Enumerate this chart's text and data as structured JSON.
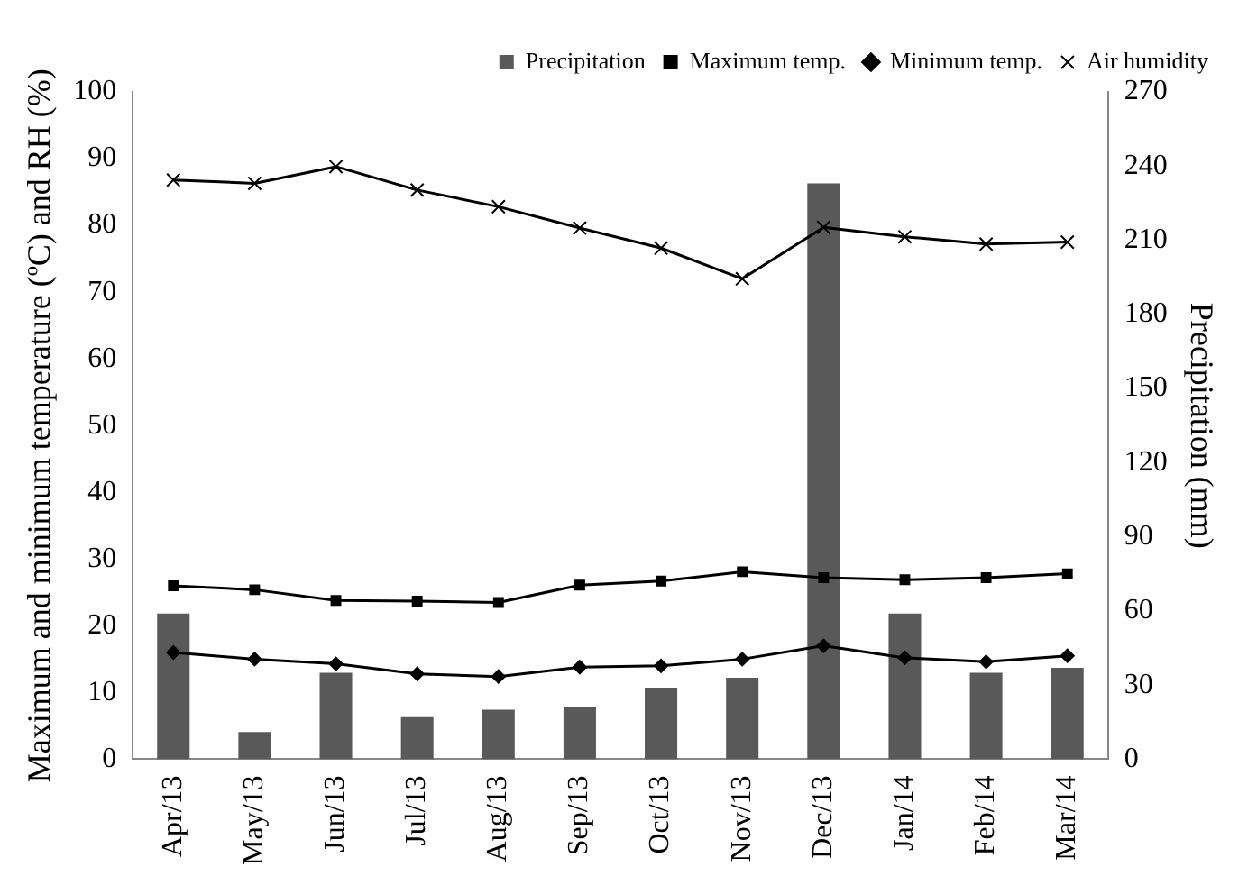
{
  "chart_data": {
    "type": "bar",
    "categories": [
      "Apr/13",
      "May/13",
      "Jun/13",
      "Jul/13",
      "Aug/13",
      "Sep/13",
      "Oct/13",
      "Nov/13",
      "Dec/13",
      "Jan/14",
      "Feb/14",
      "Mar/14"
    ],
    "ylabel": "Maximum and minimum temperature (ºC) and RH (%)",
    "y2label": "Precipitation (mm)",
    "ylim": [
      0,
      100
    ],
    "yticks": [
      0,
      10,
      20,
      30,
      40,
      50,
      60,
      70,
      80,
      90,
      100
    ],
    "y2lim": [
      0,
      270
    ],
    "y2ticks": [
      0,
      30,
      60,
      90,
      120,
      150,
      180,
      210,
      240,
      270
    ],
    "grid": false,
    "legend": "top",
    "series": [
      {
        "name": "Precipitation",
        "axis": "y2",
        "color": "#595959",
        "values": [
          59,
          11,
          35,
          17,
          20,
          21,
          29,
          33,
          233,
          59,
          35,
          37
        ]
      },
      {
        "name": "Maximum temp.",
        "type": "line",
        "marker": "square",
        "color": "#000000",
        "values": [
          26,
          25.4,
          23.8,
          23.7,
          23.5,
          26.1,
          26.7,
          28.1,
          27.2,
          26.9,
          27.2,
          27.8
        ]
      },
      {
        "name": "Minimum temp.",
        "type": "line",
        "marker": "diamond",
        "color": "#000000",
        "values": [
          16,
          15,
          14.3,
          12.8,
          12.4,
          13.8,
          14,
          15,
          17,
          15.2,
          14.6,
          15.5
        ]
      },
      {
        "name": "Air humidity",
        "type": "line",
        "marker": "cross",
        "color": "#000000",
        "values": [
          86.8,
          86.3,
          88.8,
          85.3,
          82.8,
          79.6,
          76.6,
          72,
          79.7,
          78.3,
          77.2,
          77.5
        ]
      }
    ]
  }
}
